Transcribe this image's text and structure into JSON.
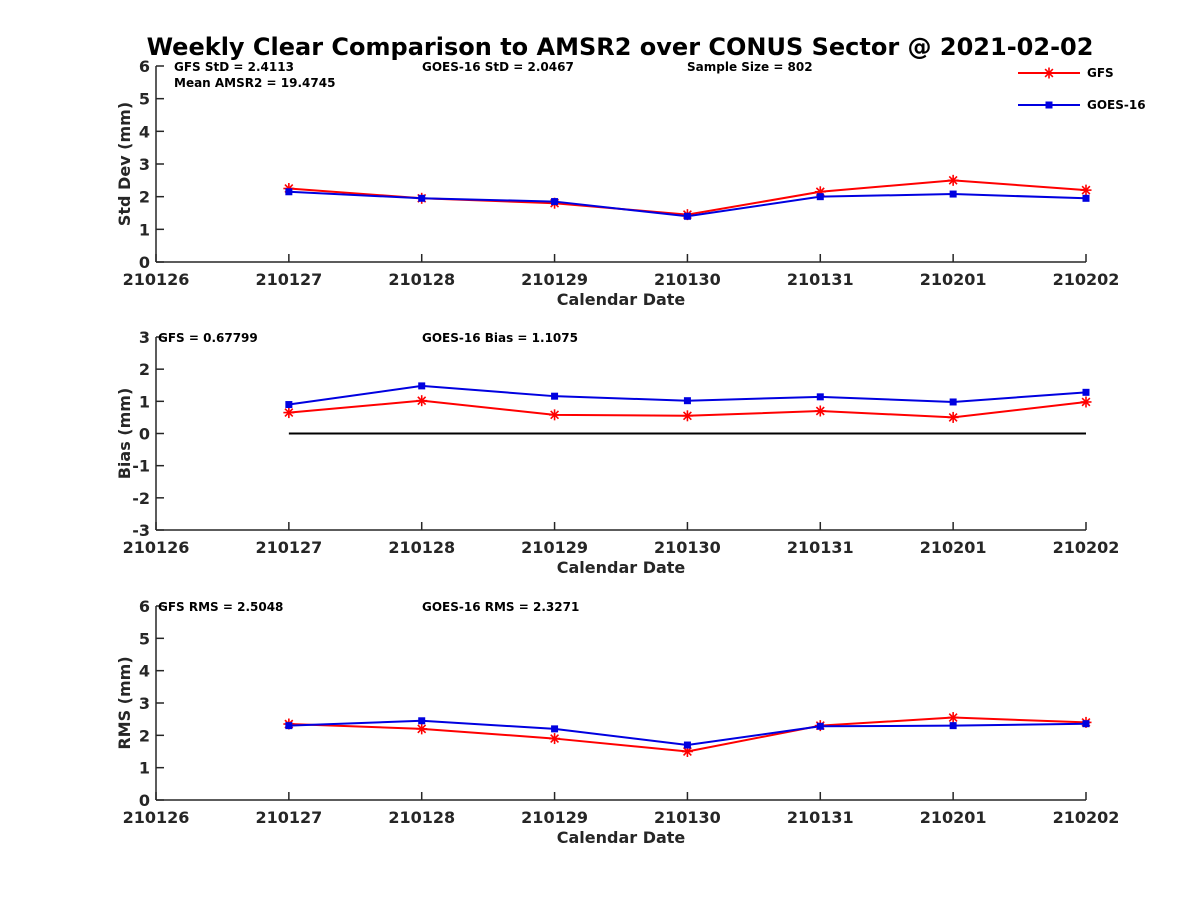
{
  "chart_data": [
    {
      "type": "line",
      "title": "Weekly Clear Comparison to AMSR2 over CONUS Sector @ 2021-02-02",
      "xlabel": "Calendar Date",
      "ylabel": "Std Dev (mm)",
      "x_ticks": [
        "210126",
        "210127",
        "210128",
        "210129",
        "210130",
        "210131",
        "210201",
        "210202"
      ],
      "x_index": [
        1,
        2,
        3,
        4,
        5,
        6,
        7
      ],
      "ylim": [
        0,
        6
      ],
      "y_ticks": [
        "0",
        "1",
        "2",
        "3",
        "4",
        "5",
        "6"
      ],
      "annotations": [
        "GFS StD = 2.4113",
        "GOES-16 StD = 2.0467",
        "Sample Size = 802",
        "Mean AMSR2 = 19.4745"
      ],
      "legend": {
        "placement": "top-right",
        "entries": [
          "GFS",
          "GOES-16"
        ]
      },
      "series": [
        {
          "name": "GFS",
          "color": "#ff0000",
          "marker": "asterisk",
          "values": [
            2.25,
            1.95,
            1.8,
            1.45,
            2.15,
            2.5,
            2.2
          ]
        },
        {
          "name": "GOES-16",
          "color": "#0000e0",
          "marker": "square",
          "values": [
            2.15,
            1.95,
            1.85,
            1.4,
            2.0,
            2.08,
            1.95
          ]
        }
      ]
    },
    {
      "type": "line",
      "xlabel": "Calendar Date",
      "ylabel": "Bias (mm)",
      "x_ticks": [
        "210126",
        "210127",
        "210128",
        "210129",
        "210130",
        "210131",
        "210201",
        "210202"
      ],
      "x_index": [
        1,
        2,
        3,
        4,
        5,
        6,
        7
      ],
      "ylim": [
        -3,
        3
      ],
      "y_ticks": [
        "-3",
        "-2",
        "-1",
        "0",
        "1",
        "2",
        "3"
      ],
      "zero_line": true,
      "annotations": [
        "GFS = 0.67799",
        "GOES-16 Bias  = 1.1075"
      ],
      "series": [
        {
          "name": "GFS",
          "color": "#ff0000",
          "marker": "asterisk",
          "values": [
            0.65,
            1.02,
            0.58,
            0.55,
            0.7,
            0.5,
            0.98
          ]
        },
        {
          "name": "GOES-16",
          "color": "#0000e0",
          "marker": "square",
          "values": [
            0.9,
            1.48,
            1.16,
            1.02,
            1.14,
            0.98,
            1.28
          ]
        }
      ]
    },
    {
      "type": "line",
      "xlabel": "Calendar Date",
      "ylabel": "RMS (mm)",
      "x_ticks": [
        "210126",
        "210127",
        "210128",
        "210129",
        "210130",
        "210131",
        "210201",
        "210202"
      ],
      "x_index": [
        1,
        2,
        3,
        4,
        5,
        6,
        7
      ],
      "ylim": [
        0,
        6
      ],
      "y_ticks": [
        "0",
        "1",
        "2",
        "3",
        "4",
        "5",
        "6"
      ],
      "annotations": [
        "GFS RMS = 2.5048",
        "GOES-16 RMS = 2.3271"
      ],
      "series": [
        {
          "name": "GFS",
          "color": "#ff0000",
          "marker": "asterisk",
          "values": [
            2.35,
            2.2,
            1.9,
            1.5,
            2.3,
            2.55,
            2.4
          ]
        },
        {
          "name": "GOES-16",
          "color": "#0000e0",
          "marker": "square",
          "values": [
            2.3,
            2.45,
            2.2,
            1.7,
            2.28,
            2.3,
            2.36
          ]
        }
      ]
    }
  ]
}
